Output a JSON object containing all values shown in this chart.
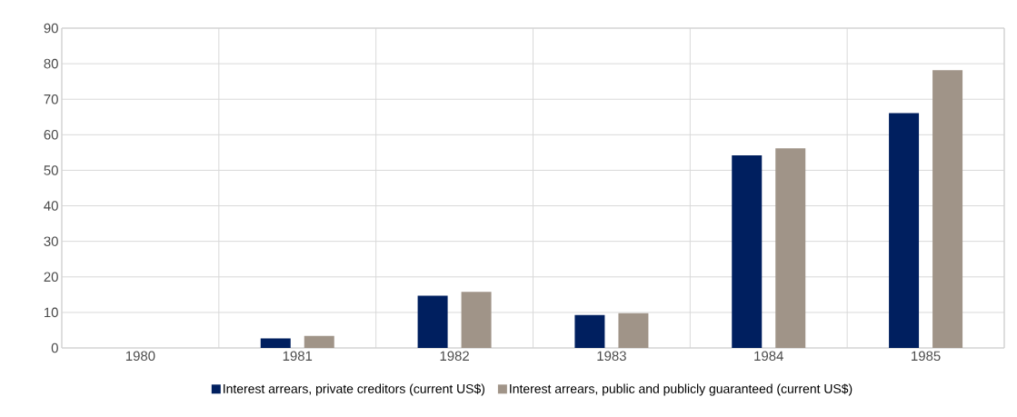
{
  "chart_data": {
    "type": "bar",
    "categories": [
      "1980",
      "1981",
      "1982",
      "1983",
      "1984",
      "1985"
    ],
    "series": [
      {
        "name": "Interest arrears, private creditors (current US$)",
        "color": "#001f5f",
        "values": [
          0,
          2.7,
          14.7,
          9.3,
          54.2,
          66.1
        ]
      },
      {
        "name": "Interest arrears, public and publicly guaranteed (current US$)",
        "color": "#a09488",
        "values": [
          0,
          3.4,
          15.8,
          9.8,
          56.2,
          78.2
        ]
      }
    ],
    "ylim": [
      0,
      90
    ],
    "yticks": [
      0,
      10,
      20,
      30,
      40,
      50,
      60,
      70,
      80,
      90
    ],
    "grid": true,
    "legend": "bottom"
  }
}
